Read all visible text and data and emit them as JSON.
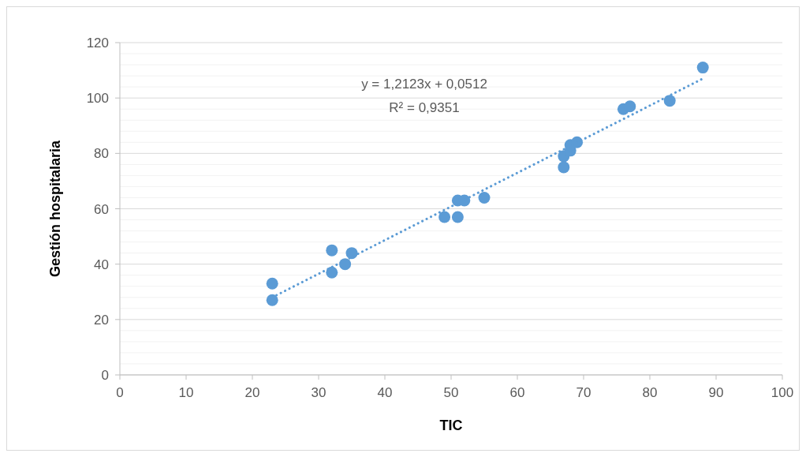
{
  "chart_data": {
    "type": "scatter",
    "xlabel": "TIC",
    "ylabel": "Gestión hospitalaria",
    "xlim": [
      0,
      100
    ],
    "xticks": [
      0,
      10,
      20,
      30,
      40,
      50,
      60,
      70,
      80,
      90,
      100
    ],
    "ylim": [
      0,
      120
    ],
    "yticks": [
      0,
      {
        "value": 4,
        "label": null
      },
      {
        "value": 8,
        "label": null
      },
      {
        "value": 12,
        "label": null
      },
      {
        "value": 16,
        "label": null
      },
      20,
      {
        "value": 24,
        "label": null
      },
      {
        "value": 28,
        "label": null
      },
      {
        "value": 32,
        "label": null
      },
      {
        "value": 36,
        "label": null
      },
      40,
      {
        "value": 44,
        "label": null
      },
      {
        "value": 48,
        "label": null
      },
      {
        "value": 52,
        "label": null
      },
      {
        "value": 56,
        "label": null
      },
      60,
      {
        "value": 64,
        "label": null
      },
      {
        "value": 68,
        "label": null
      },
      {
        "value": 72,
        "label": null
      },
      {
        "value": 76,
        "label": null
      },
      80,
      {
        "value": 84,
        "label": null
      },
      {
        "value": 88,
        "label": null
      },
      {
        "value": 92,
        "label": null
      },
      {
        "value": 96,
        "label": null
      },
      100,
      {
        "value": 104,
        "label": null
      },
      {
        "value": 108,
        "label": null
      },
      {
        "value": 112,
        "label": null
      },
      {
        "value": 116,
        "label": null
      },
      120
    ],
    "grid": "y",
    "marker": "circle",
    "series": [
      {
        "color": "#5b9bd5",
        "x": [
          23,
          23,
          32,
          32,
          34,
          35,
          49,
          51,
          51,
          52,
          55,
          67,
          67,
          68,
          68,
          69,
          76,
          77,
          83,
          88
        ],
        "values": [
          33,
          27,
          45,
          37,
          40,
          44,
          57,
          57,
          63,
          63,
          64,
          79,
          75,
          81,
          83,
          84,
          96,
          97,
          99,
          111
        ]
      },
      {
        "type": "line",
        "color": "#5b9bd5",
        "line_style": "dotted",
        "marker": "none",
        "x": [
          23,
          88
        ],
        "values": [
          28,
          107
        ]
      }
    ],
    "annotations": [
      "y = 1,2123x + 0,0512",
      "R² = 0,9351"
    ]
  }
}
